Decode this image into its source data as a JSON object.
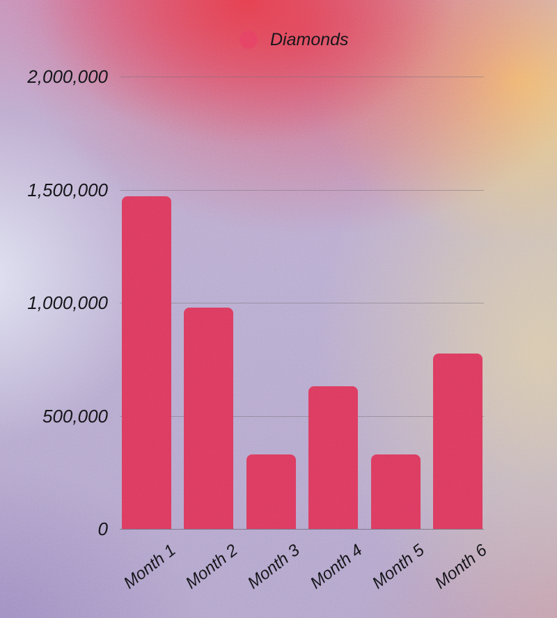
{
  "chart_data": {
    "type": "bar",
    "categories": [
      "Month 1",
      "Month 2",
      "Month 3",
      "Month 4",
      "Month 5",
      "Month 6"
    ],
    "series": [
      {
        "name": "Diamonds",
        "values": [
          1470000,
          980000,
          330000,
          630000,
          330000,
          775000
        ]
      }
    ],
    "ylim": [
      0,
      2000000
    ],
    "yticks": [
      0,
      500000,
      1000000,
      1500000,
      2000000
    ],
    "ytick_labels": [
      "0",
      "500,000",
      "1,000,000",
      "1,500,000",
      "2,000,000"
    ],
    "xlabel": "",
    "ylabel": "",
    "grid": true,
    "legend_position": "top-center",
    "bar_color": "#DB395C",
    "legend_marker_color": "#E4405F",
    "text_color": "#141418"
  }
}
